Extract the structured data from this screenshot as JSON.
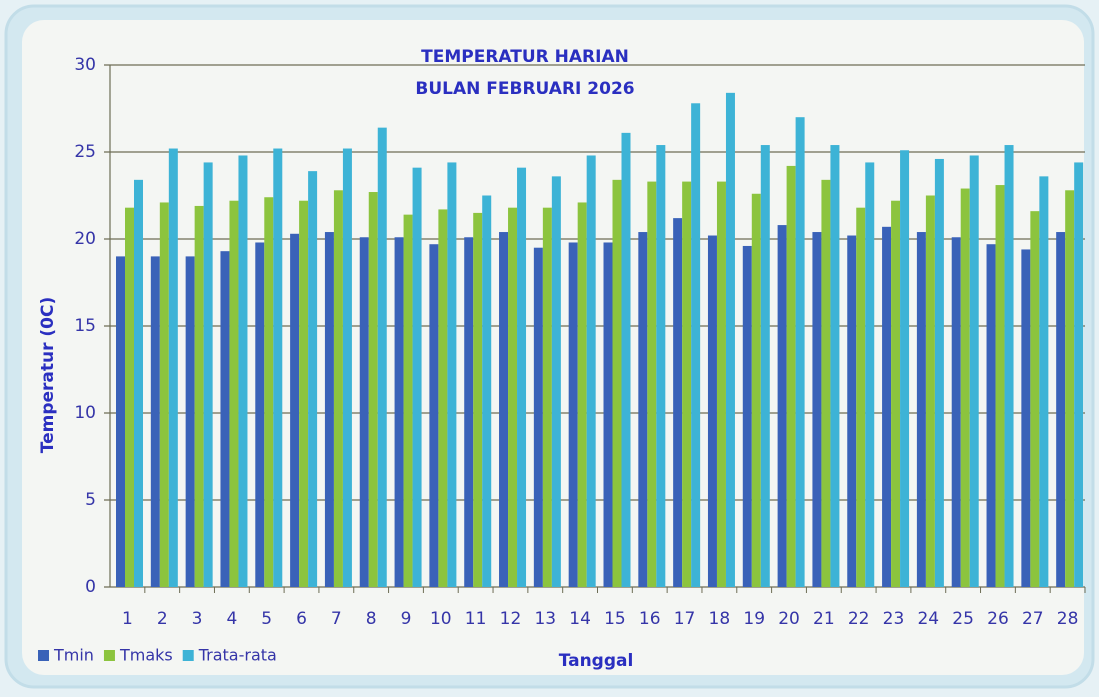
{
  "chart_data": {
    "type": "bar",
    "title": "TEMPERATUR HARIAN",
    "subtitle": "BULAN FEBRUARI 2026",
    "x_label": "Tanggal",
    "y_label": "Temperatur  (0C)",
    "categories": [
      "1",
      "2",
      "3",
      "4",
      "5",
      "6",
      "7",
      "8",
      "9",
      "10",
      "11",
      "12",
      "13",
      "14",
      "15",
      "16",
      "17",
      "18",
      "19",
      "20",
      "21",
      "22",
      "23",
      "24",
      "25",
      "26",
      "27",
      "28"
    ],
    "series": [
      {
        "name": "Tmin",
        "color": "#3a62b8",
        "values": [
          19.0,
          19.0,
          19.0,
          19.3,
          19.8,
          20.3,
          20.4,
          20.1,
          20.1,
          19.7,
          20.1,
          20.4,
          19.5,
          19.8,
          19.8,
          20.4,
          21.2,
          20.2,
          19.6,
          20.8,
          20.4,
          20.2,
          20.7,
          20.4,
          20.1,
          19.7,
          19.4,
          20.4
        ]
      },
      {
        "name": "Tmaks",
        "color": "#8cc43e",
        "values": [
          21.8,
          22.1,
          21.9,
          22.2,
          22.4,
          22.2,
          22.8,
          22.7,
          21.4,
          21.7,
          21.5,
          21.8,
          21.8,
          22.1,
          23.4,
          23.3,
          23.3,
          23.3,
          22.6,
          24.2,
          23.4,
          21.8,
          22.2,
          22.5,
          22.9,
          23.1,
          21.6,
          22.8
        ]
      },
      {
        "name": "Trata-rata",
        "color": "#3db3d6",
        "values": [
          23.4,
          25.2,
          24.4,
          24.8,
          25.2,
          23.9,
          25.2,
          26.4,
          24.1,
          24.4,
          22.5,
          24.1,
          23.6,
          24.8,
          26.1,
          25.4,
          27.8,
          28.4,
          25.4,
          27.0,
          25.4,
          24.4,
          25.1,
          24.6,
          24.8,
          25.4,
          23.6,
          24.4
        ]
      }
    ],
    "ylim": [
      0,
      30
    ],
    "yticks": [
      0,
      5,
      10,
      15,
      20,
      25,
      30
    ],
    "grid": true,
    "legend": "bottom-left"
  }
}
